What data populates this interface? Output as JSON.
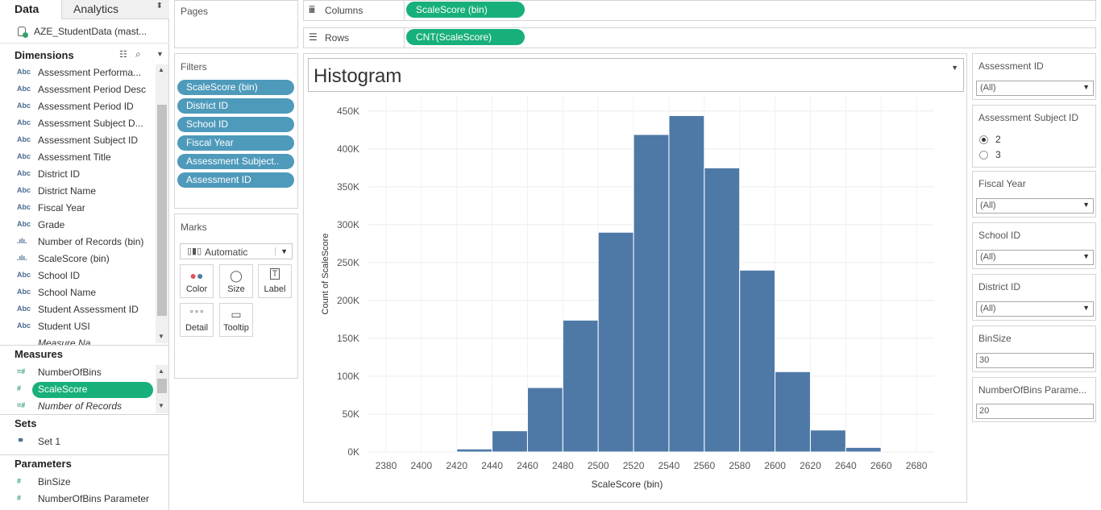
{
  "left_pane": {
    "tab_data": "Data",
    "tab_analytics": "Analytics",
    "datasource": "AZE_StudentData (mast...",
    "dimensions_header": "Dimensions",
    "dimensions": [
      {
        "icon": "Abc",
        "label": "Assessment Performa..."
      },
      {
        "icon": "Abc",
        "label": "Assessment Period Desc"
      },
      {
        "icon": "Abc",
        "label": "Assessment Period ID"
      },
      {
        "icon": "Abc",
        "label": "Assessment Subject D..."
      },
      {
        "icon": "Abc",
        "label": "Assessment Subject ID"
      },
      {
        "icon": "Abc",
        "label": "Assessment Title"
      },
      {
        "icon": "Abc",
        "label": "District ID"
      },
      {
        "icon": "Abc",
        "label": "District Name"
      },
      {
        "icon": "Abc",
        "label": "Fiscal Year"
      },
      {
        "icon": "Abc",
        "label": "Grade"
      },
      {
        "icon": ".ılı.",
        "label": "Number of Records (bin)"
      },
      {
        "icon": ".ılı.",
        "label": "ScaleScore (bin)"
      },
      {
        "icon": "Abc",
        "label": "School ID"
      },
      {
        "icon": "Abc",
        "label": "School Name"
      },
      {
        "icon": "Abc",
        "label": "Student Assessment ID"
      },
      {
        "icon": "Abc",
        "label": "Student USI"
      }
    ],
    "measures_header": "Measures",
    "measures": [
      {
        "icon": "=#",
        "label": "NumberOfBins"
      },
      {
        "icon": "#",
        "label": "ScaleScore"
      },
      {
        "icon": "=#",
        "label": "Number of Records"
      }
    ],
    "sets_header": "Sets",
    "sets": [
      {
        "label": "Set 1"
      }
    ],
    "parameters_header": "Parameters",
    "parameters": [
      {
        "icon": "#",
        "label": "BinSize"
      },
      {
        "icon": "#",
        "label": "NumberOfBins Parameter"
      }
    ]
  },
  "pages_label": "Pages",
  "filters_label": "Filters",
  "filters": [
    "ScaleScore (bin)",
    "District ID",
    "School ID",
    "Fiscal Year",
    "Assessment Subject..",
    "Assessment ID"
  ],
  "marks": {
    "label": "Marks",
    "type": "Automatic",
    "buttons": [
      "Color",
      "Size",
      "Label",
      "Detail",
      "Tooltip"
    ]
  },
  "shelves": {
    "columns_label": "Columns",
    "columns_pill": "ScaleScore (bin)",
    "rows_label": "Rows",
    "rows_pill": "CNT(ScaleScore)"
  },
  "worksheet_title": "Histogram",
  "chart_data": {
    "type": "bar",
    "xlabel": "ScaleScore (bin)",
    "ylabel": "Count of ScaleScore",
    "x_ticks": [
      2380,
      2400,
      2420,
      2440,
      2460,
      2480,
      2500,
      2520,
      2540,
      2560,
      2580,
      2600,
      2620,
      2640,
      2660,
      2680
    ],
    "y_ticks": [
      "0K",
      "50K",
      "100K",
      "150K",
      "200K",
      "250K",
      "300K",
      "350K",
      "400K",
      "450K"
    ],
    "xlim": [
      2370,
      2690
    ],
    "ylim": [
      0,
      470000
    ],
    "bin_width": 20,
    "categories": [
      2420,
      2440,
      2460,
      2480,
      2500,
      2520,
      2540,
      2560,
      2580,
      2600,
      2620,
      2640
    ],
    "values": [
      4000,
      28000,
      85000,
      174000,
      290000,
      419000,
      444000,
      375000,
      240000,
      106000,
      29000,
      6000
    ],
    "bar_color": "#4e79a7",
    "grid": true
  },
  "quick_filters": {
    "assessment_id": {
      "title": "Assessment ID",
      "value": "(All)"
    },
    "assessment_subject_id": {
      "title": "Assessment Subject ID",
      "options": [
        "2",
        "3"
      ],
      "selected": "2"
    },
    "fiscal_year": {
      "title": "Fiscal Year",
      "value": "(All)"
    },
    "school_id": {
      "title": "School ID",
      "value": "(All)"
    },
    "district_id": {
      "title": "District ID",
      "value": "(All)"
    },
    "binsize": {
      "title": "BinSize",
      "value": "30"
    },
    "numberofbins": {
      "title": "NumberOfBins Parame...",
      "value": "20"
    }
  }
}
